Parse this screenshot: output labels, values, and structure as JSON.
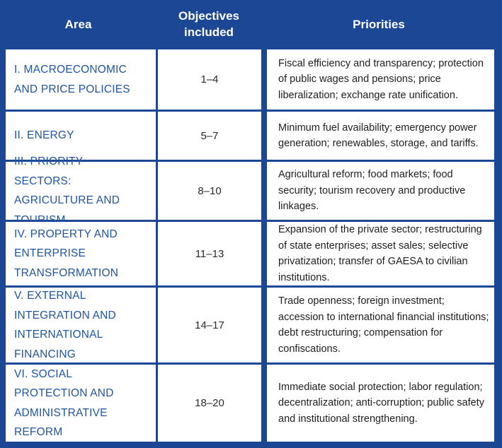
{
  "headers": {
    "area": "Area",
    "objectives": "Objectives included",
    "priorities": "Priorities"
  },
  "rows": [
    {
      "area": "I. MACROECONOMIC AND PRICE POLICIES",
      "objectives": "1–4",
      "priorities": "Fiscal efficiency and transparency; protection of public wages and pensions; price liberalization; exchange rate unification."
    },
    {
      "area": "II. ENERGY",
      "objectives": "5–7",
      "priorities": "Minimum fuel availability; emergency power generation; renewables, storage, and tariffs."
    },
    {
      "area": "III. PRIORITY SECTORS: AGRICULTURE AND TOURISM",
      "objectives": "8–10",
      "priorities": "Agricultural reform; food markets; food security; tourism recovery and productive linkages."
    },
    {
      "area": "IV. PROPERTY AND ENTERPRISE TRANSFORMATION",
      "objectives": "11–13",
      "priorities": "Expansion of the private sector; restructuring of state enterprises; asset sales; selective privatization; transfer of GAESA to civilian institutions."
    },
    {
      "area": "V. EXTERNAL INTEGRATION AND INTERNATIONAL FINANCING",
      "objectives": "14–17",
      "priorities": "Trade openness; foreign investment; accession to international financial institutions; debt restructuring; compensation for confiscations."
    },
    {
      "area": "VI. SOCIAL PROTECTION AND ADMINISTRATIVE REFORM",
      "objectives": "18–20",
      "priorities": "Immediate social protection; labor regulation; decentralization; anti-corruption; public safety and institutional strengthening."
    }
  ]
}
